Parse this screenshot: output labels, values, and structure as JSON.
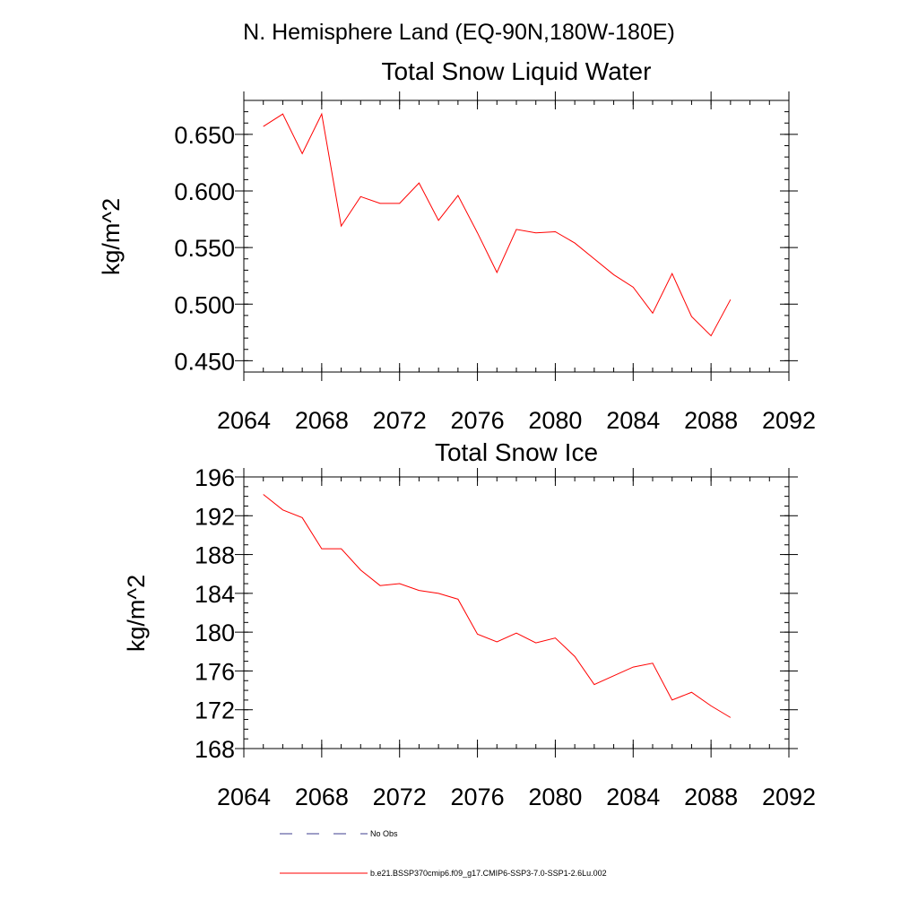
{
  "page_title": "N. Hemisphere Land (EQ-90N,180W-180E)",
  "colors": {
    "series": "#ff0000",
    "no_obs": "#3d3d8f",
    "axis": "#000000"
  },
  "legend": [
    {
      "label": "No Obs",
      "style": "dashed",
      "color": "#3d3d8f"
    },
    {
      "label": "b.e21.BSSP370cmip6.f09_g17.CMIP6-SSP3-7.0-SSP1-2.6Lu.002",
      "style": "solid",
      "color": "#ff0000"
    }
  ],
  "chart_data": [
    {
      "type": "line",
      "title": "Total Snow Liquid Water",
      "xlabel": "",
      "ylabel": "kg/m^2",
      "xlim": [
        2064,
        2092
      ],
      "ylim": [
        0.44,
        0.68
      ],
      "x_ticks": [
        2064,
        2068,
        2072,
        2076,
        2080,
        2084,
        2088,
        2092
      ],
      "x_tick_labels": [
        "2064",
        "2068",
        "2072",
        "2076",
        "2080",
        "2084",
        "2088",
        "2092"
      ],
      "y_ticks": [
        0.45,
        0.5,
        0.55,
        0.6,
        0.65
      ],
      "y_tick_labels": [
        "0.450",
        "0.500",
        "0.550",
        "0.600",
        "0.650"
      ],
      "x_minor_step": 1,
      "y_minor_step": 0.01,
      "grid": false,
      "series": [
        {
          "color": "#ff0000",
          "x": [
            2065,
            2066,
            2067,
            2068,
            2069,
            2070,
            2071,
            2072,
            2073,
            2074,
            2075,
            2076,
            2077,
            2078,
            2079,
            2080,
            2081,
            2082,
            2083,
            2084,
            2085,
            2086,
            2087,
            2088,
            2089
          ],
          "y": [
            0.657,
            0.668,
            0.633,
            0.668,
            0.569,
            0.595,
            0.589,
            0.589,
            0.607,
            0.574,
            0.596,
            0.563,
            0.528,
            0.566,
            0.563,
            0.564,
            0.554,
            0.54,
            0.526,
            0.515,
            0.492,
            0.527,
            0.489,
            0.472,
            0.504
          ]
        }
      ]
    },
    {
      "type": "line",
      "title": "Total Snow Ice",
      "xlabel": "",
      "ylabel": "kg/m^2",
      "xlim": [
        2064,
        2092
      ],
      "ylim": [
        168,
        196
      ],
      "x_ticks": [
        2064,
        2068,
        2072,
        2076,
        2080,
        2084,
        2088,
        2092
      ],
      "x_tick_labels": [
        "2064",
        "2068",
        "2072",
        "2076",
        "2080",
        "2084",
        "2088",
        "2092"
      ],
      "y_ticks": [
        168,
        172,
        176,
        180,
        184,
        188,
        192,
        196
      ],
      "y_tick_labels": [
        "168",
        "172",
        "176",
        "180",
        "184",
        "188",
        "192",
        "196"
      ],
      "x_minor_step": 1,
      "y_minor_step": 1,
      "grid": false,
      "series": [
        {
          "color": "#ff0000",
          "x": [
            2065,
            2066,
            2067,
            2068,
            2069,
            2070,
            2071,
            2072,
            2073,
            2074,
            2075,
            2076,
            2077,
            2078,
            2079,
            2080,
            2081,
            2082,
            2083,
            2084,
            2085,
            2086,
            2087,
            2088,
            2089
          ],
          "y": [
            194.2,
            192.6,
            191.8,
            188.6,
            188.6,
            186.4,
            184.8,
            185.0,
            184.3,
            184.0,
            183.4,
            179.8,
            179.0,
            179.9,
            178.9,
            179.4,
            177.5,
            174.6,
            175.5,
            176.4,
            176.8,
            173.0,
            173.8,
            172.4,
            171.2
          ]
        }
      ]
    }
  ]
}
